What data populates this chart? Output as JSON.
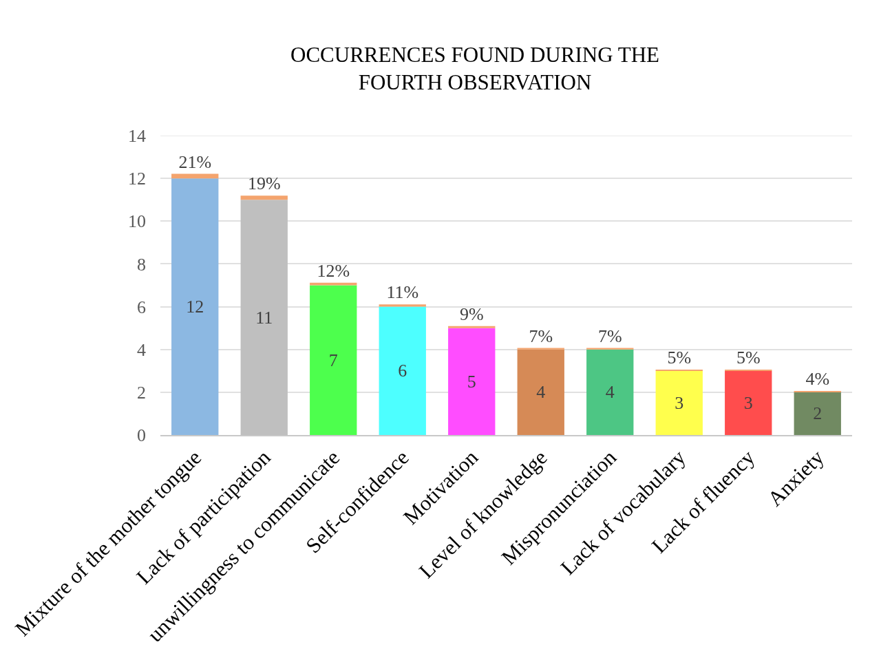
{
  "chart_data": {
    "type": "bar",
    "title": "OCCURRENCES FOUND DURING THE FOURTH OBSERVATION",
    "categories": [
      "Mixture of the mother tongue",
      "Lack of participation",
      "unwillingness to communicate",
      "Self-confidence",
      "Motivation",
      "Level of knowledge",
      "Mispronunciation",
      "Lack of vocabulary",
      "Lack of fluency",
      "Anxiety"
    ],
    "series": [
      {
        "colors": [
          "#8cb8e2",
          "#bfbfbf",
          "#4dff4d",
          "#4dffff",
          "#ff4dff",
          "#d68a56",
          "#4dc684",
          "#ffff4d",
          "#ff4d4d",
          "#718a62"
        ],
        "values": [
          12,
          11,
          7,
          6,
          5,
          4,
          4,
          3,
          3,
          2
        ],
        "value_labels": [
          "12",
          "11",
          "7",
          "6",
          "5",
          "4",
          "4",
          "3",
          "3",
          "2"
        ]
      },
      {
        "color": "#f4a46e",
        "values": [
          0.21,
          0.19,
          0.12,
          0.11,
          0.09,
          0.07,
          0.07,
          0.05,
          0.05,
          0.04
        ],
        "value_labels": [
          "21%",
          "19%",
          "12%",
          "11%",
          "9%",
          "7%",
          "7%",
          "5%",
          "5%",
          "4%"
        ]
      }
    ],
    "stacked": true,
    "ylim": [
      0,
      14
    ],
    "yticks": [
      0,
      2,
      4,
      6,
      8,
      10,
      12,
      14
    ],
    "grid": "y",
    "legend": false
  }
}
